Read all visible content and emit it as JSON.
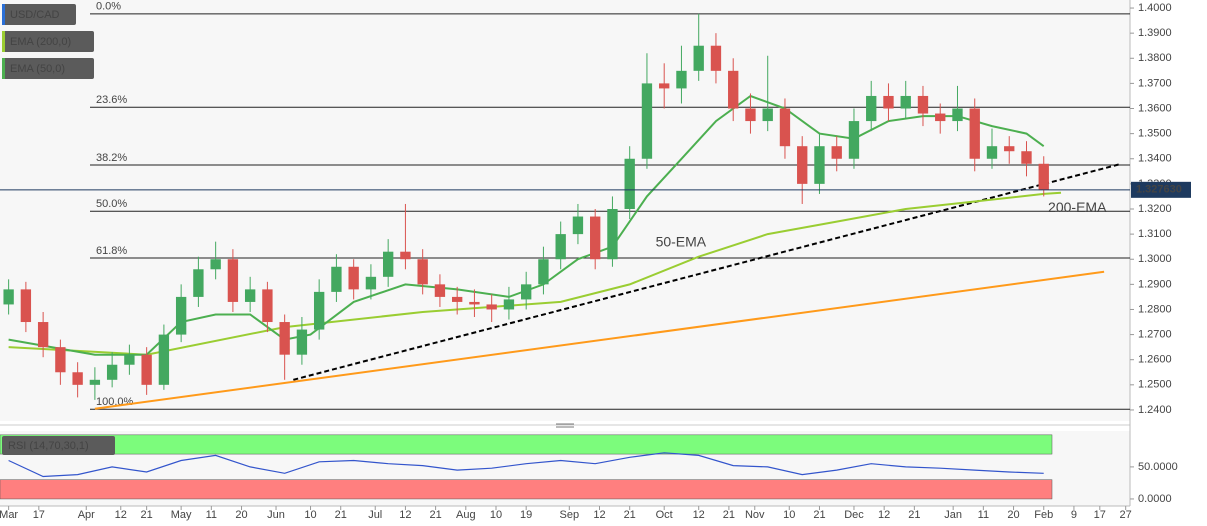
{
  "chart_data": [
    {
      "type": "candlestick",
      "candle_name": "USD/CAD",
      "up_color": "#43a860",
      "down_color": "#d9534f",
      "x": [
        0,
        4,
        8,
        12,
        16,
        20,
        24,
        28,
        32,
        36,
        40,
        44,
        48,
        52,
        56,
        60,
        64,
        68,
        72,
        76,
        80,
        84,
        88,
        92,
        96,
        100,
        104,
        108,
        112,
        116,
        120,
        124,
        128,
        132,
        136,
        140,
        144,
        148,
        152,
        156,
        160,
        164,
        168,
        172,
        176,
        180,
        184,
        188,
        192,
        196,
        200,
        204,
        208,
        212,
        216,
        220,
        224,
        228,
        232,
        236,
        240
      ],
      "candles": [
        [
          1.282,
          1.292,
          1.278,
          1.288
        ],
        [
          1.288,
          1.291,
          1.271,
          1.275
        ],
        [
          1.275,
          1.279,
          1.261,
          1.265
        ],
        [
          1.265,
          1.268,
          1.25,
          1.255
        ],
        [
          1.255,
          1.259,
          1.245,
          1.25
        ],
        [
          1.25,
          1.257,
          1.244,
          1.252
        ],
        [
          1.252,
          1.263,
          1.249,
          1.258
        ],
        [
          1.258,
          1.266,
          1.254,
          1.262
        ],
        [
          1.262,
          1.265,
          1.246,
          1.25
        ],
        [
          1.25,
          1.274,
          1.248,
          1.27
        ],
        [
          1.27,
          1.29,
          1.267,
          1.285
        ],
        [
          1.285,
          1.301,
          1.281,
          1.296
        ],
        [
          1.296,
          1.307,
          1.292,
          1.3
        ],
        [
          1.3,
          1.304,
          1.279,
          1.283
        ],
        [
          1.283,
          1.293,
          1.279,
          1.288
        ],
        [
          1.288,
          1.291,
          1.271,
          1.275
        ],
        [
          1.275,
          1.278,
          1.252,
          1.262
        ],
        [
          1.262,
          1.277,
          1.258,
          1.272
        ],
        [
          1.272,
          1.292,
          1.268,
          1.287
        ],
        [
          1.287,
          1.302,
          1.283,
          1.297
        ],
        [
          1.297,
          1.3,
          1.284,
          1.288
        ],
        [
          1.288,
          1.298,
          1.284,
          1.293
        ],
        [
          1.293,
          1.308,
          1.289,
          1.303
        ],
        [
          1.303,
          1.322,
          1.296,
          1.3
        ],
        [
          1.3,
          1.304,
          1.286,
          1.29
        ],
        [
          1.29,
          1.294,
          1.281,
          1.285
        ],
        [
          1.285,
          1.289,
          1.278,
          1.283
        ],
        [
          1.283,
          1.288,
          1.277,
          1.282
        ],
        [
          1.282,
          1.286,
          1.275,
          1.28
        ],
        [
          1.28,
          1.289,
          1.276,
          1.284
        ],
        [
          1.284,
          1.295,
          1.28,
          1.29
        ],
        [
          1.29,
          1.305,
          1.286,
          1.3
        ],
        [
          1.3,
          1.315,
          1.296,
          1.31
        ],
        [
          1.31,
          1.322,
          1.306,
          1.317
        ],
        [
          1.317,
          1.32,
          1.296,
          1.3
        ],
        [
          1.3,
          1.325,
          1.297,
          1.32
        ],
        [
          1.32,
          1.345,
          1.316,
          1.34
        ],
        [
          1.34,
          1.382,
          1.336,
          1.37
        ],
        [
          1.37,
          1.378,
          1.36,
          1.368
        ],
        [
          1.368,
          1.385,
          1.362,
          1.375
        ],
        [
          1.375,
          1.3977,
          1.371,
          1.385
        ],
        [
          1.385,
          1.39,
          1.37,
          1.375
        ],
        [
          1.375,
          1.38,
          1.355,
          1.36
        ],
        [
          1.36,
          1.366,
          1.35,
          1.355
        ],
        [
          1.355,
          1.381,
          1.351,
          1.36
        ],
        [
          1.36,
          1.364,
          1.34,
          1.345
        ],
        [
          1.345,
          1.349,
          1.322,
          1.33
        ],
        [
          1.33,
          1.35,
          1.326,
          1.345
        ],
        [
          1.345,
          1.349,
          1.335,
          1.34
        ],
        [
          1.34,
          1.36,
          1.336,
          1.355
        ],
        [
          1.355,
          1.371,
          1.351,
          1.365
        ],
        [
          1.365,
          1.37,
          1.355,
          1.36
        ],
        [
          1.36,
          1.371,
          1.356,
          1.365
        ],
        [
          1.365,
          1.369,
          1.353,
          1.358
        ],
        [
          1.358,
          1.362,
          1.35,
          1.355
        ],
        [
          1.355,
          1.369,
          1.351,
          1.36
        ],
        [
          1.36,
          1.364,
          1.335,
          1.34
        ],
        [
          1.34,
          1.352,
          1.336,
          1.345
        ],
        [
          1.345,
          1.349,
          1.338,
          1.343
        ],
        [
          1.343,
          1.347,
          1.333,
          1.338
        ],
        [
          1.338,
          1.341,
          1.325,
          1.3276
        ]
      ],
      "series": [
        {
          "name": "EMA (200,0)",
          "color": "#9acd32",
          "x": [
            0,
            32,
            64,
            96,
            128,
            144,
            160,
            176,
            192,
            208,
            224,
            240,
            244
          ],
          "values": [
            1.265,
            1.262,
            1.273,
            1.279,
            1.283,
            1.29,
            1.301,
            1.31,
            1.315,
            1.32,
            1.323,
            1.326,
            1.3265
          ]
        },
        {
          "name": "EMA (50,0)",
          "color": "#4caf50",
          "x": [
            0,
            20,
            32,
            40,
            48,
            56,
            64,
            70,
            80,
            92,
            104,
            116,
            124,
            132,
            140,
            148,
            156,
            164,
            172,
            180,
            188,
            196,
            204,
            212,
            220,
            228,
            236,
            240
          ],
          "values": [
            1.268,
            1.262,
            1.262,
            1.275,
            1.278,
            1.278,
            1.268,
            1.27,
            1.283,
            1.29,
            1.288,
            1.285,
            1.29,
            1.3,
            1.305,
            1.325,
            1.34,
            1.355,
            1.365,
            1.36,
            1.35,
            1.348,
            1.355,
            1.357,
            1.357,
            1.353,
            1.35,
            1.345
          ]
        }
      ],
      "trend_lines": [
        {
          "color": "#000000",
          "dashed": true,
          "x": [
            66,
            258
          ],
          "values": [
            1.252,
            1.338
          ]
        },
        {
          "color": "#ff9a1a",
          "dashed": false,
          "x": [
            20,
            254
          ],
          "values": [
            1.2405,
            1.295
          ]
        }
      ],
      "levels": [
        {
          "label": "0.0%",
          "value": 1.3977
        },
        {
          "label": "23.6%",
          "value": 1.3605
        },
        {
          "label": "38.2%",
          "value": 1.3375
        },
        {
          "label": "50.0%",
          "value": 1.3191
        },
        {
          "label": "61.8%",
          "value": 1.3005
        },
        {
          "label": "100.0%",
          "value": 1.2403
        }
      ],
      "annotations": [
        {
          "text": "50-EMA",
          "color": "#4caf50",
          "x": 150,
          "y": 1.3065
        },
        {
          "text": "200-EMA",
          "color": "#9acd32",
          "x": 241,
          "y": 1.3202
        }
      ],
      "last_price": {
        "value": 1.32763,
        "label": "1.327630"
      },
      "xlim": [
        -2,
        260
      ],
      "ylim": [
        1.2356,
        1.4032
      ],
      "xticks": [
        {
          "value": 0,
          "label": "Mar"
        },
        {
          "value": 7,
          "label": "17"
        },
        {
          "value": 18,
          "label": "Apr"
        },
        {
          "value": 26,
          "label": "12"
        },
        {
          "value": 32,
          "label": "21"
        },
        {
          "value": 40,
          "label": "May"
        },
        {
          "value": 47,
          "label": "11"
        },
        {
          "value": 54,
          "label": "20"
        },
        {
          "value": 62,
          "label": "Jun"
        },
        {
          "value": 70,
          "label": "10"
        },
        {
          "value": 77,
          "label": "21"
        },
        {
          "value": 85,
          "label": "Jul"
        },
        {
          "value": 92,
          "label": "12"
        },
        {
          "value": 99,
          "label": "21"
        },
        {
          "value": 106,
          "label": "Aug"
        },
        {
          "value": 113,
          "label": "10"
        },
        {
          "value": 120,
          "label": "19"
        },
        {
          "value": 130,
          "label": "Sep"
        },
        {
          "value": 137,
          "label": "12"
        },
        {
          "value": 144,
          "label": "21"
        },
        {
          "value": 152,
          "label": "Oct"
        },
        {
          "value": 160,
          "label": "12"
        },
        {
          "value": 167,
          "label": "21"
        },
        {
          "value": 173,
          "label": "Nov"
        },
        {
          "value": 181,
          "label": "10"
        },
        {
          "value": 188,
          "label": "21"
        },
        {
          "value": 196,
          "label": "Dec"
        },
        {
          "value": 203,
          "label": "12"
        },
        {
          "value": 210,
          "label": "21"
        },
        {
          "value": 219,
          "label": "Jan"
        },
        {
          "value": 226,
          "label": "11"
        },
        {
          "value": 233,
          "label": "20"
        },
        {
          "value": 240,
          "label": "Feb"
        },
        {
          "value": 247,
          "label": "9"
        },
        {
          "value": 253,
          "label": "17"
        },
        {
          "value": 259,
          "label": "27"
        }
      ],
      "yticks": [
        {
          "value": 1.24,
          "label": "1.2400"
        },
        {
          "value": 1.25,
          "label": "1.2500"
        },
        {
          "value": 1.26,
          "label": "1.2600"
        },
        {
          "value": 1.27,
          "label": "1.2700"
        },
        {
          "value": 1.28,
          "label": "1.2800"
        },
        {
          "value": 1.29,
          "label": "1.2900"
        },
        {
          "value": 1.3,
          "label": "1.3000"
        },
        {
          "value": 1.31,
          "label": "1.3100"
        },
        {
          "value": 1.32,
          "label": "1.3200"
        },
        {
          "value": 1.33,
          "label": "1.3300"
        },
        {
          "value": 1.34,
          "label": "1.3400"
        },
        {
          "value": 1.35,
          "label": "1.3500"
        },
        {
          "value": 1.36,
          "label": "1.3600"
        },
        {
          "value": 1.37,
          "label": "1.3700"
        },
        {
          "value": 1.38,
          "label": "1.3800"
        },
        {
          "value": 1.39,
          "label": "1.3900"
        },
        {
          "value": 1.4,
          "label": "1.4000"
        }
      ]
    },
    {
      "type": "line",
      "x": [
        0,
        8,
        16,
        24,
        32,
        40,
        48,
        56,
        64,
        72,
        80,
        88,
        96,
        104,
        112,
        120,
        128,
        136,
        144,
        152,
        160,
        168,
        176,
        184,
        192,
        200,
        208,
        216,
        224,
        232,
        240
      ],
      "series": [
        {
          "name": "RSI (14,70,30,1)",
          "color": "#3355cc",
          "values": [
            60,
            35,
            38,
            50,
            42,
            60,
            68,
            50,
            40,
            58,
            60,
            55,
            52,
            45,
            48,
            55,
            60,
            55,
            65,
            72,
            68,
            52,
            50,
            38,
            45,
            55,
            50,
            48,
            45,
            42,
            40
          ]
        }
      ],
      "bands": [
        {
          "from": 70,
          "to": 100,
          "color": "#7cfc7c"
        },
        {
          "from": 0,
          "to": 30,
          "color": "#ff7f7f"
        }
      ],
      "xlim": [
        -2,
        260
      ],
      "ylim": [
        -11,
        106
      ],
      "yticks": [
        {
          "value": 50,
          "label": "50.0000"
        },
        {
          "value": 0,
          "label": "0.0000"
        }
      ]
    }
  ]
}
